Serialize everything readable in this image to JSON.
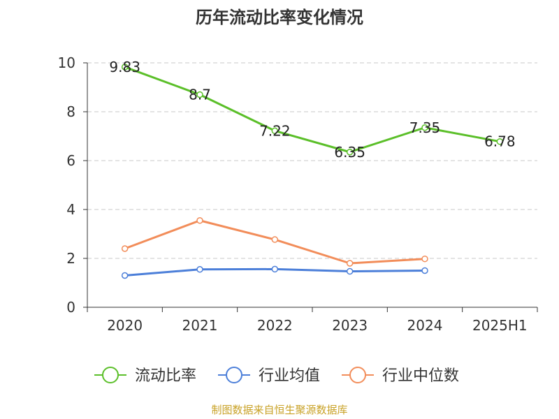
{
  "chart_data": {
    "type": "line",
    "title": "历年流动比率变化情况",
    "categories": [
      "2020",
      "2021",
      "2022",
      "2023",
      "2024",
      "2025H1"
    ],
    "yticks": [
      "0",
      "2",
      "4",
      "6",
      "8",
      "10"
    ],
    "ylim": [
      0,
      10
    ],
    "grid": true,
    "legend_position": "bottom",
    "series": [
      {
        "name": "流动比率",
        "color": "#5bbf29",
        "values": [
          9.83,
          8.7,
          7.22,
          6.35,
          7.35,
          6.78
        ],
        "labels": [
          "9.83",
          "8.7",
          "7.22",
          "6.35",
          "7.35",
          "6.78"
        ]
      },
      {
        "name": "行业均值",
        "color": "#4c7fd9",
        "values": [
          1.3,
          1.55,
          1.56,
          1.47,
          1.5,
          null
        ]
      },
      {
        "name": "行业中位数",
        "color": "#f28d5a",
        "values": [
          2.4,
          3.55,
          2.77,
          1.8,
          1.98,
          null
        ]
      }
    ]
  },
  "source": "制图数据来自恒生聚源数据库"
}
